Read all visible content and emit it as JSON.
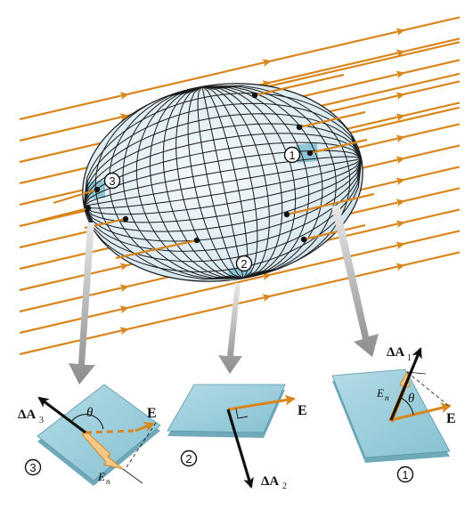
{
  "diagram": {
    "surface": {
      "region_labels": [
        "1",
        "2",
        "3"
      ]
    },
    "panels": [
      {
        "id": "3",
        "badge": "3",
        "area_vector": "ΔA",
        "area_sub": "3",
        "angle": "θ",
        "field": "E",
        "component": "E",
        "component_sub": "n"
      },
      {
        "id": "2",
        "badge": "2",
        "area_vector": "ΔA",
        "area_sub": "2",
        "field": "E"
      },
      {
        "id": "1",
        "badge": "1",
        "area_vector": "ΔA",
        "area_sub": "1",
        "angle": "θ",
        "field": "E",
        "component": "E",
        "component_sub": "n"
      }
    ],
    "colors": {
      "field_line": "#d9861c",
      "surface_fill": "#dcebf2",
      "patch_fill": "#8fc6d6",
      "panel_fill": "#9fd0dc",
      "grid_line": "#1a1a1a",
      "pointer_arrow": "#a8a8a8"
    }
  }
}
